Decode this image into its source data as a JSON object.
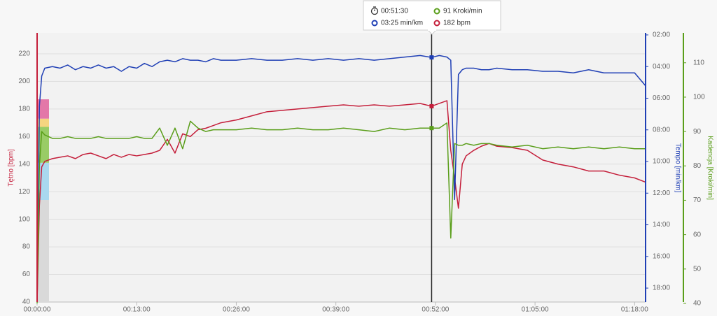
{
  "chart_data": {
    "type": "line",
    "ylabel": "Tętno [bpm]",
    "y2label": "Tempo [min/km]",
    "y3label": "Kadencja [Kroki/min]",
    "xlim": [
      0,
      79.43
    ],
    "xticks": [
      {
        "value": 0,
        "label": "00:00:00"
      },
      {
        "value": 13,
        "label": "00:13:00"
      },
      {
        "value": 26,
        "label": "00:26:00"
      },
      {
        "value": 39,
        "label": "00:39:00"
      },
      {
        "value": 52,
        "label": "00:52:00"
      },
      {
        "value": 65,
        "label": "01:05:00"
      },
      {
        "value": 78,
        "label": "01:18:00"
      }
    ],
    "ylim": [
      40,
      235.2
    ],
    "yticks": [
      40,
      60,
      80,
      100,
      120,
      140,
      160,
      180,
      200,
      220
    ],
    "y2lim": [
      18.88,
      1.87
    ],
    "y2ticks": [
      {
        "value": 2,
        "label": "02:00"
      },
      {
        "value": 4,
        "label": "04:00"
      },
      {
        "value": 6,
        "label": "06:00"
      },
      {
        "value": 8,
        "label": "08:00"
      },
      {
        "value": 10,
        "label": "10:00"
      },
      {
        "value": 12,
        "label": "12:00"
      },
      {
        "value": 14,
        "label": "14:00"
      },
      {
        "value": 16,
        "label": "16:00"
      },
      {
        "value": 18,
        "label": "18:00"
      }
    ],
    "y3lim": [
      40.4,
      118.7
    ],
    "y3ticks": [
      40,
      50,
      60,
      70,
      80,
      90,
      100,
      110
    ],
    "grid": true,
    "zones": [
      {
        "from": 40,
        "to": 114,
        "color": "#d9d9d9"
      },
      {
        "from": 114,
        "to": 141,
        "color": "#a9d8ef"
      },
      {
        "from": 141,
        "to": 167,
        "color": "#99cc66"
      },
      {
        "from": 167,
        "to": 173,
        "color": "#f5d580"
      },
      {
        "from": 173,
        "to": 187,
        "color": "#e377a8"
      }
    ],
    "x": [
      0,
      0.3,
      0.6,
      1,
      2,
      3,
      4,
      5,
      6,
      7,
      8,
      9,
      10,
      11,
      12,
      13,
      14,
      15,
      16,
      17,
      18,
      19,
      20,
      21,
      22,
      23,
      24,
      26,
      28,
      30,
      32,
      34,
      36,
      38,
      40,
      42,
      44,
      46,
      48,
      50,
      51.5,
      52.5,
      53.5,
      54,
      54.5,
      55,
      55.5,
      56,
      57,
      58,
      59,
      60,
      62,
      64,
      66,
      68,
      70,
      72,
      74,
      76,
      78,
      79.4
    ],
    "series": [
      {
        "axis": "y",
        "color": "#c41e3a",
        "values": [
          40,
          110,
          138,
          142,
          144,
          145,
          146,
          144,
          147,
          148,
          146,
          144,
          147,
          145,
          147,
          146,
          147,
          148,
          150,
          158,
          148,
          162,
          160,
          165,
          166,
          168,
          170,
          172,
          175,
          178,
          179,
          180,
          181,
          182,
          183,
          182,
          183,
          182,
          183,
          184,
          182,
          184,
          186,
          150,
          130,
          108,
          140,
          146,
          150,
          153,
          155,
          153,
          152,
          150,
          143,
          140,
          138,
          135,
          135,
          132,
          130,
          127
        ]
      },
      {
        "axis": "y2",
        "color": "#1f3fb5",
        "values": [
          18.8,
          6.5,
          4.6,
          4.1,
          4.0,
          4.1,
          3.9,
          4.2,
          4.0,
          4.1,
          3.9,
          4.1,
          4.0,
          4.3,
          4.0,
          4.1,
          3.8,
          4.0,
          3.7,
          3.6,
          3.7,
          3.5,
          3.6,
          3.6,
          3.7,
          3.5,
          3.6,
          3.6,
          3.5,
          3.6,
          3.6,
          3.5,
          3.6,
          3.5,
          3.6,
          3.5,
          3.6,
          3.5,
          3.4,
          3.3,
          3.42,
          3.3,
          3.4,
          3.6,
          12.4,
          4.5,
          4.2,
          4.1,
          4.1,
          4.2,
          4.2,
          4.1,
          4.2,
          4.2,
          4.3,
          4.3,
          4.4,
          4.2,
          4.4,
          4.4,
          4.4,
          5.2
        ]
      },
      {
        "axis": "y3",
        "color": "#5a9e1a",
        "values": [
          40,
          80,
          90,
          89,
          88,
          88,
          88.5,
          88,
          88,
          88,
          88.5,
          88,
          88,
          88,
          88,
          88.5,
          88,
          88,
          91,
          86,
          91,
          85,
          93,
          91,
          90,
          90.5,
          90.5,
          90.5,
          91,
          90.5,
          90.5,
          91,
          90.5,
          90.5,
          91,
          90.5,
          90,
          91,
          90.5,
          91,
          91,
          91,
          92.5,
          59,
          86.5,
          86,
          86,
          86.5,
          86,
          86.5,
          86.5,
          86,
          85.5,
          86,
          85,
          85.5,
          85,
          85.5,
          85,
          85.5,
          85,
          85
        ]
      }
    ],
    "cursor": 51.5,
    "tooltip": {
      "time": "00:51:30",
      "cadence": "91 Kroki/min",
      "pace": "03:25 min/km",
      "hr": "182 bpm"
    }
  }
}
